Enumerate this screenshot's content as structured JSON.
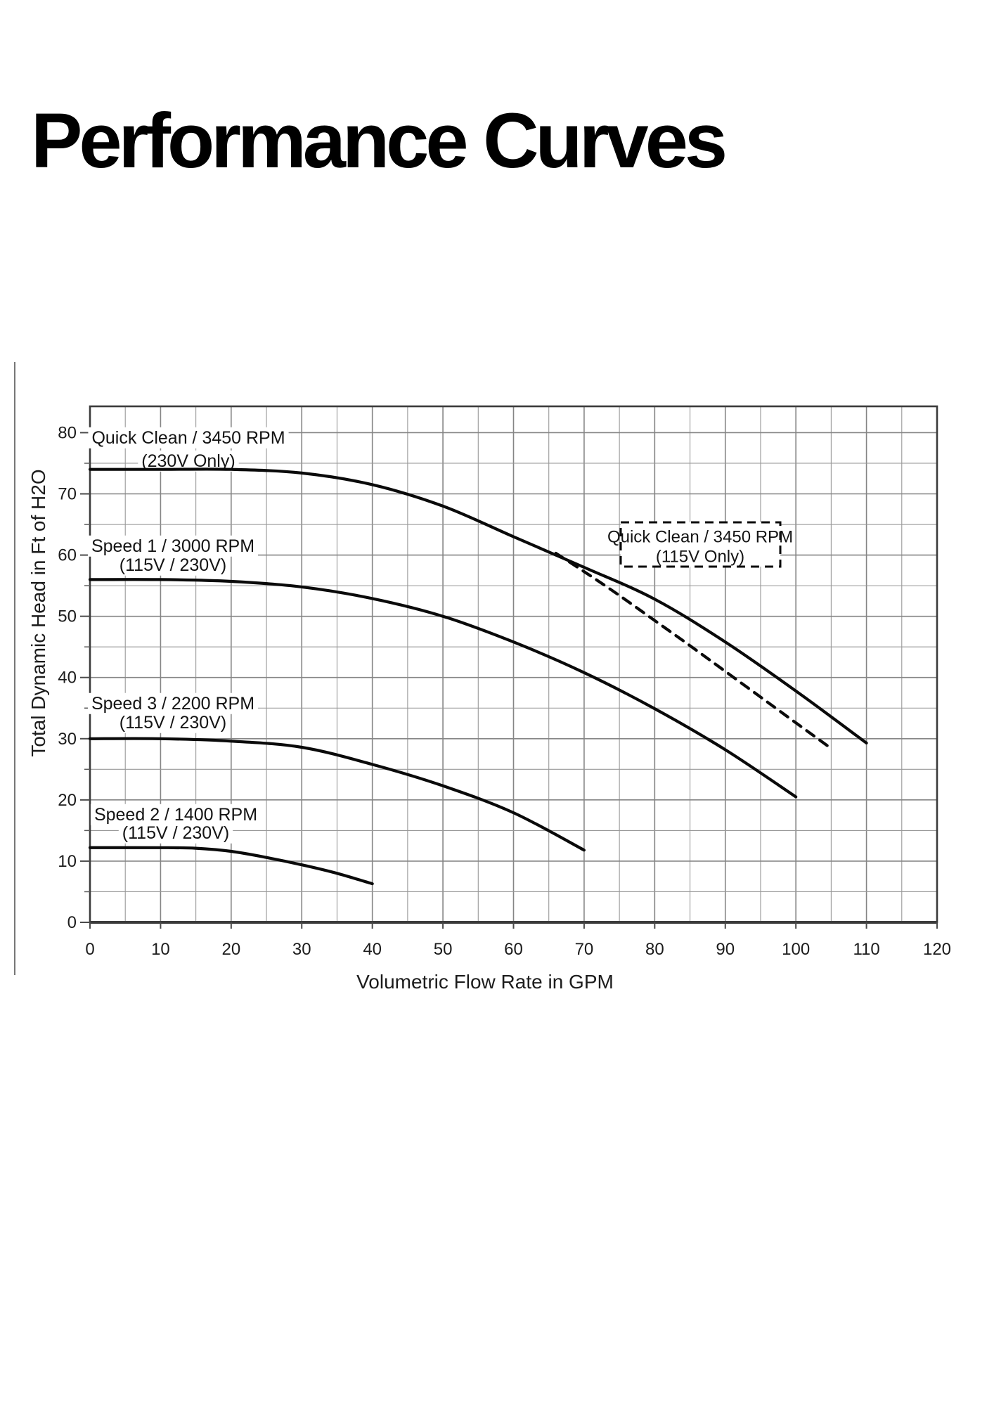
{
  "title": "Performance Curves",
  "chart_data": {
    "type": "line",
    "title": "Performance Curves",
    "xlabel": "Volumetric Flow Rate in GPM",
    "ylabel": "Total Dynamic Head in Ft of H2O",
    "xlim": [
      0,
      120
    ],
    "ylim": [
      0,
      84.3
    ],
    "x_tick_labels": [
      "0",
      "10",
      "20",
      "30",
      "40",
      "50",
      "60",
      "70",
      "80",
      "90",
      "100",
      "110",
      "120"
    ],
    "y_tick_labels": [
      "0",
      "10",
      "20",
      "30",
      "40",
      "50",
      "60",
      "70",
      "80"
    ],
    "x_tick_step": 10,
    "y_tick_step": 10,
    "x_minor_step": 5,
    "y_minor_step": 5,
    "grid": true,
    "legend_position": "inline-labels",
    "line_color": "#0a0a0a",
    "grid_color": "#8f8f8f",
    "frame_color": "#3b3b3b",
    "series": [
      {
        "name": "Quick Clean / 3450 RPM (230V Only)",
        "line_style": "solid",
        "label_lines": [
          "Quick Clean / 3450 RPM",
          "(230V Only)"
        ],
        "label_boxed": false,
        "points": [
          [
            0,
            74
          ],
          [
            10,
            74
          ],
          [
            20,
            74
          ],
          [
            30,
            73.4
          ],
          [
            40,
            71.5
          ],
          [
            50,
            68
          ],
          [
            60,
            63
          ],
          [
            70,
            58
          ],
          [
            80,
            52.8
          ],
          [
            90,
            45.8
          ],
          [
            100,
            37.8
          ],
          [
            110,
            29.3
          ]
        ]
      },
      {
        "name": "Quick Clean / 3450 RPM (115V Only)",
        "line_style": "dashed",
        "label_lines": [
          "Quick Clean / 3450 RPM",
          "(115V Only)"
        ],
        "label_boxed": true,
        "points": [
          [
            66,
            60.3
          ],
          [
            70,
            57.3
          ],
          [
            75,
            53.4
          ],
          [
            80,
            49.3
          ],
          [
            85,
            45.2
          ],
          [
            90,
            41
          ],
          [
            95,
            36.8
          ],
          [
            100,
            32.6
          ],
          [
            105,
            28.4
          ]
        ]
      },
      {
        "name": "Speed 1 / 3000 RPM (115V / 230V)",
        "line_style": "solid",
        "label_lines": [
          "Speed 1 / 3000 RPM",
          "(115V / 230V)"
        ],
        "label_boxed": false,
        "points": [
          [
            0,
            56
          ],
          [
            10,
            56
          ],
          [
            20,
            55.7
          ],
          [
            30,
            54.8
          ],
          [
            40,
            52.9
          ],
          [
            50,
            50
          ],
          [
            60,
            45.8
          ],
          [
            70,
            40.8
          ],
          [
            80,
            34.9
          ],
          [
            90,
            28.2
          ],
          [
            100,
            20.5
          ]
        ]
      },
      {
        "name": "Speed 3 / 2200 RPM (115V / 230V)",
        "line_style": "solid",
        "label_lines": [
          "Speed 3 / 2200 RPM",
          "(115V / 230V)"
        ],
        "label_boxed": false,
        "points": [
          [
            0,
            30
          ],
          [
            10,
            30
          ],
          [
            20,
            29.6
          ],
          [
            30,
            28.6
          ],
          [
            40,
            25.8
          ],
          [
            50,
            22.3
          ],
          [
            60,
            17.9
          ],
          [
            70,
            11.8
          ]
        ]
      },
      {
        "name": "Speed 2 / 1400 RPM (115V / 230V)",
        "line_style": "solid",
        "label_lines": [
          "Speed 2 / 1400 RPM",
          "(115V / 230V)"
        ],
        "label_boxed": false,
        "points": [
          [
            0,
            12.2
          ],
          [
            10,
            12.2
          ],
          [
            15,
            12.1
          ],
          [
            20,
            11.6
          ],
          [
            25,
            10.6
          ],
          [
            30,
            9.4
          ],
          [
            35,
            8
          ],
          [
            40,
            6.3
          ]
        ]
      }
    ]
  }
}
